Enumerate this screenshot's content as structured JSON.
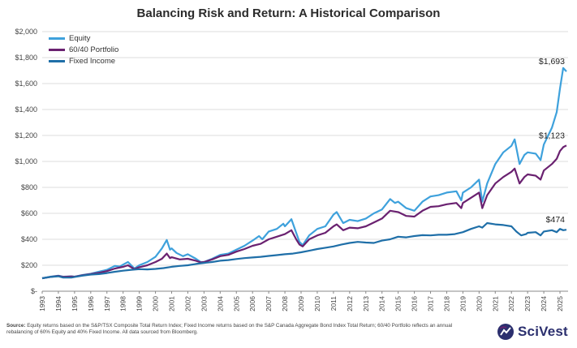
{
  "chart_data": {
    "type": "line",
    "title": "Balancing Risk and Return: A Historical Comparison",
    "xlabel": "",
    "ylabel": "",
    "ylim": [
      0,
      2000
    ],
    "xlim": [
      1993,
      2025.5
    ],
    "y_ticks": [
      0,
      200,
      400,
      600,
      800,
      1000,
      1200,
      1400,
      1600,
      1800,
      2000
    ],
    "y_tick_labels": [
      "$-",
      "$200",
      "$400",
      "$600",
      "$800",
      "$1,000",
      "$1,200",
      "$1,400",
      "$1,600",
      "$1,800",
      "$2,000"
    ],
    "x_tick_labels": [
      "1993",
      "1994",
      "1995",
      "1996",
      "1997",
      "1998",
      "1999",
      "2000",
      "2001",
      "2002",
      "2003",
      "2004",
      "2005",
      "2006",
      "2007",
      "2008",
      "2009",
      "2010",
      "2011",
      "2012",
      "2013",
      "2014",
      "2015",
      "2016",
      "2017",
      "2018",
      "2019",
      "2020",
      "2021",
      "2022",
      "2023",
      "2024",
      "2025"
    ],
    "grid": true,
    "legend_position": "top-left",
    "series": [
      {
        "name": "Equity",
        "color": "#3ea1dc",
        "end_label": "$1,693",
        "points": [
          [
            1993,
            100
          ],
          [
            1993.5,
            112
          ],
          [
            1994,
            120
          ],
          [
            1994.3,
            112
          ],
          [
            1994.8,
            115
          ],
          [
            1995,
            112
          ],
          [
            1995.5,
            125
          ],
          [
            1996,
            135
          ],
          [
            1996.5,
            150
          ],
          [
            1997,
            165
          ],
          [
            1997.5,
            195
          ],
          [
            1997.8,
            190
          ],
          [
            1998,
            205
          ],
          [
            1998.3,
            225
          ],
          [
            1998.7,
            175
          ],
          [
            1999,
            200
          ],
          [
            1999.5,
            225
          ],
          [
            2000,
            265
          ],
          [
            2000.4,
            330
          ],
          [
            2000.7,
            395
          ],
          [
            2000.9,
            320
          ],
          [
            2001,
            330
          ],
          [
            2001.3,
            295
          ],
          [
            2001.7,
            270
          ],
          [
            2002,
            285
          ],
          [
            2002.5,
            250
          ],
          [
            2002.8,
            225
          ],
          [
            2003,
            225
          ],
          [
            2003.5,
            250
          ],
          [
            2004,
            280
          ],
          [
            2004.5,
            290
          ],
          [
            2005,
            320
          ],
          [
            2005.5,
            350
          ],
          [
            2006,
            390
          ],
          [
            2006.4,
            425
          ],
          [
            2006.6,
            400
          ],
          [
            2007,
            460
          ],
          [
            2007.5,
            480
          ],
          [
            2007.9,
            520
          ],
          [
            2008,
            500
          ],
          [
            2008.4,
            555
          ],
          [
            2008.7,
            450
          ],
          [
            2008.9,
            380
          ],
          [
            2009.1,
            355
          ],
          [
            2009.5,
            430
          ],
          [
            2010,
            480
          ],
          [
            2010.5,
            500
          ],
          [
            2011,
            590
          ],
          [
            2011.2,
            610
          ],
          [
            2011.6,
            525
          ],
          [
            2012,
            550
          ],
          [
            2012.5,
            540
          ],
          [
            2013,
            560
          ],
          [
            2013.5,
            600
          ],
          [
            2014,
            630
          ],
          [
            2014.5,
            710
          ],
          [
            2014.8,
            680
          ],
          [
            2015,
            690
          ],
          [
            2015.5,
            640
          ],
          [
            2016,
            620
          ],
          [
            2016.5,
            690
          ],
          [
            2017,
            730
          ],
          [
            2017.5,
            740
          ],
          [
            2018,
            760
          ],
          [
            2018.6,
            770
          ],
          [
            2018.9,
            700
          ],
          [
            2019,
            760
          ],
          [
            2019.5,
            800
          ],
          [
            2020,
            860
          ],
          [
            2020.2,
            690
          ],
          [
            2020.5,
            830
          ],
          [
            2021,
            980
          ],
          [
            2021.5,
            1070
          ],
          [
            2022,
            1120
          ],
          [
            2022.2,
            1170
          ],
          [
            2022.5,
            980
          ],
          [
            2022.8,
            1050
          ],
          [
            2023,
            1070
          ],
          [
            2023.5,
            1060
          ],
          [
            2023.8,
            1010
          ],
          [
            2024,
            1130
          ],
          [
            2024.5,
            1260
          ],
          [
            2024.8,
            1380
          ],
          [
            2025,
            1560
          ],
          [
            2025.2,
            1720
          ],
          [
            2025.4,
            1693
          ]
        ]
      },
      {
        "name": "60/40 Portfolio",
        "color": "#6a2170",
        "end_label": "$1,123",
        "points": [
          [
            1993,
            100
          ],
          [
            1993.5,
            110
          ],
          [
            1994,
            118
          ],
          [
            1994.3,
            110
          ],
          [
            1994.8,
            113
          ],
          [
            1995,
            112
          ],
          [
            1995.5,
            123
          ],
          [
            1996,
            132
          ],
          [
            1996.5,
            142
          ],
          [
            1997,
            155
          ],
          [
            1997.5,
            175
          ],
          [
            1998,
            188
          ],
          [
            1998.3,
            200
          ],
          [
            1998.7,
            170
          ],
          [
            1999,
            185
          ],
          [
            1999.5,
            200
          ],
          [
            2000,
            225
          ],
          [
            2000.4,
            250
          ],
          [
            2000.7,
            290
          ],
          [
            2000.9,
            255
          ],
          [
            2001,
            262
          ],
          [
            2001.5,
            245
          ],
          [
            2002,
            250
          ],
          [
            2002.5,
            235
          ],
          [
            2002.8,
            222
          ],
          [
            2003,
            225
          ],
          [
            2003.5,
            245
          ],
          [
            2004,
            270
          ],
          [
            2004.5,
            280
          ],
          [
            2005,
            305
          ],
          [
            2005.5,
            325
          ],
          [
            2006,
            350
          ],
          [
            2006.5,
            365
          ],
          [
            2007,
            400
          ],
          [
            2007.5,
            420
          ],
          [
            2008,
            440
          ],
          [
            2008.4,
            470
          ],
          [
            2008.7,
            400
          ],
          [
            2008.9,
            360
          ],
          [
            2009.1,
            345
          ],
          [
            2009.5,
            400
          ],
          [
            2010,
            430
          ],
          [
            2010.5,
            450
          ],
          [
            2011,
            500
          ],
          [
            2011.2,
            515
          ],
          [
            2011.6,
            470
          ],
          [
            2012,
            490
          ],
          [
            2012.5,
            485
          ],
          [
            2013,
            500
          ],
          [
            2013.5,
            530
          ],
          [
            2014,
            560
          ],
          [
            2014.5,
            620
          ],
          [
            2015,
            610
          ],
          [
            2015.5,
            580
          ],
          [
            2016,
            575
          ],
          [
            2016.5,
            620
          ],
          [
            2017,
            650
          ],
          [
            2017.5,
            655
          ],
          [
            2018,
            670
          ],
          [
            2018.6,
            680
          ],
          [
            2018.9,
            640
          ],
          [
            2019,
            680
          ],
          [
            2019.5,
            720
          ],
          [
            2020,
            760
          ],
          [
            2020.2,
            640
          ],
          [
            2020.5,
            740
          ],
          [
            2021,
            830
          ],
          [
            2021.5,
            880
          ],
          [
            2022,
            920
          ],
          [
            2022.2,
            945
          ],
          [
            2022.5,
            830
          ],
          [
            2022.8,
            880
          ],
          [
            2023,
            900
          ],
          [
            2023.5,
            890
          ],
          [
            2023.8,
            860
          ],
          [
            2024,
            930
          ],
          [
            2024.5,
            980
          ],
          [
            2024.8,
            1020
          ],
          [
            2025,
            1080
          ],
          [
            2025.2,
            1110
          ],
          [
            2025.4,
            1123
          ]
        ]
      },
      {
        "name": "Fixed Income",
        "color": "#1f6fa8",
        "end_label": "$474",
        "points": [
          [
            1993,
            100
          ],
          [
            1993.5,
            110
          ],
          [
            1994,
            115
          ],
          [
            1994.3,
            105
          ],
          [
            1994.8,
            105
          ],
          [
            1995,
            110
          ],
          [
            1995.5,
            120
          ],
          [
            1996,
            128
          ],
          [
            1996.5,
            132
          ],
          [
            1997,
            140
          ],
          [
            1997.5,
            150
          ],
          [
            1998,
            158
          ],
          [
            1998.5,
            165
          ],
          [
            1999,
            170
          ],
          [
            1999.5,
            168
          ],
          [
            2000,
            172
          ],
          [
            2000.5,
            178
          ],
          [
            2001,
            188
          ],
          [
            2001.5,
            195
          ],
          [
            2002,
            200
          ],
          [
            2002.5,
            210
          ],
          [
            2003,
            218
          ],
          [
            2003.5,
            225
          ],
          [
            2004,
            235
          ],
          [
            2004.5,
            240
          ],
          [
            2005,
            248
          ],
          [
            2005.5,
            255
          ],
          [
            2006,
            260
          ],
          [
            2006.5,
            265
          ],
          [
            2007,
            272
          ],
          [
            2007.5,
            278
          ],
          [
            2008,
            285
          ],
          [
            2008.5,
            290
          ],
          [
            2009,
            300
          ],
          [
            2009.5,
            312
          ],
          [
            2010,
            325
          ],
          [
            2010.5,
            335
          ],
          [
            2011,
            345
          ],
          [
            2011.5,
            360
          ],
          [
            2012,
            372
          ],
          [
            2012.5,
            380
          ],
          [
            2013,
            375
          ],
          [
            2013.5,
            372
          ],
          [
            2014,
            390
          ],
          [
            2014.5,
            400
          ],
          [
            2015,
            420
          ],
          [
            2015.5,
            415
          ],
          [
            2016,
            425
          ],
          [
            2016.5,
            432
          ],
          [
            2017,
            430
          ],
          [
            2017.5,
            435
          ],
          [
            2018,
            435
          ],
          [
            2018.5,
            440
          ],
          [
            2019,
            455
          ],
          [
            2019.5,
            480
          ],
          [
            2020,
            500
          ],
          [
            2020.2,
            490
          ],
          [
            2020.5,
            525
          ],
          [
            2021,
            515
          ],
          [
            2021.5,
            510
          ],
          [
            2022,
            500
          ],
          [
            2022.3,
            460
          ],
          [
            2022.6,
            430
          ],
          [
            2022.9,
            440
          ],
          [
            2023,
            450
          ],
          [
            2023.5,
            455
          ],
          [
            2023.8,
            430
          ],
          [
            2024,
            460
          ],
          [
            2024.5,
            470
          ],
          [
            2024.8,
            455
          ],
          [
            2025,
            480
          ],
          [
            2025.2,
            470
          ],
          [
            2025.4,
            474
          ]
        ]
      }
    ]
  },
  "source": {
    "label": "Source:",
    "text": "Equity returns based on the S&P/TSX Composite Total Return Index; Fixed Income returns based on the S&P Canada Aggregate Bond Index Total Return; 60/40 Portfolio reflects an annual rebalancing of 60% Equity and 40% Fixed Income. All data sourced from Bloomberg."
  },
  "logo": {
    "text": "SciVest"
  }
}
